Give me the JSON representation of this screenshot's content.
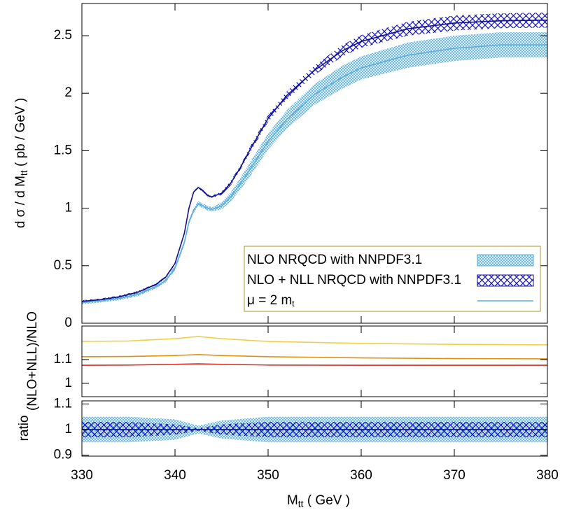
{
  "chart_data": [
    {
      "type": "line",
      "ylabel": {
        "text": "d σ / d M",
        "sub": "tt",
        "after": "  ( pb / GeV )"
      },
      "x": [
        330,
        332,
        334,
        336,
        338,
        339,
        340,
        341,
        341.5,
        342,
        342.5,
        343,
        343.5,
        344,
        345,
        346,
        347,
        348,
        350,
        352,
        355,
        358,
        360,
        365,
        370,
        375,
        380
      ],
      "xlim": [
        330,
        380
      ],
      "xticks": [
        330,
        340,
        350,
        360,
        370,
        380
      ],
      "ylim": [
        0,
        2.78
      ],
      "yticks": [
        0,
        0.5,
        1,
        1.5,
        2,
        2.5
      ],
      "legend": "lower right",
      "line_legend": {
        "text": "μ = 2 m",
        "sub": "t"
      },
      "series": [
        {
          "name": "NLO NRQCD with NNPDF3.1",
          "color": "#5aaee0",
          "band_style": "light-hatch",
          "values": [
            0.18,
            0.195,
            0.215,
            0.25,
            0.32,
            0.37,
            0.48,
            0.7,
            0.88,
            0.98,
            1.04,
            1.02,
            1.0,
            0.99,
            1.02,
            1.1,
            1.21,
            1.33,
            1.58,
            1.77,
            1.99,
            2.14,
            2.22,
            2.33,
            2.39,
            2.42,
            2.42
          ],
          "low": [
            0.165,
            0.18,
            0.2,
            0.235,
            0.305,
            0.355,
            0.46,
            0.68,
            0.86,
            0.96,
            1.02,
            1.0,
            0.98,
            0.97,
            0.99,
            1.06,
            1.16,
            1.27,
            1.51,
            1.69,
            1.9,
            2.04,
            2.12,
            2.22,
            2.28,
            2.31,
            2.31
          ],
          "high": [
            0.195,
            0.21,
            0.23,
            0.265,
            0.335,
            0.385,
            0.5,
            0.72,
            0.9,
            1.0,
            1.06,
            1.04,
            1.02,
            1.01,
            1.05,
            1.14,
            1.26,
            1.39,
            1.65,
            1.85,
            2.08,
            2.24,
            2.32,
            2.44,
            2.5,
            2.53,
            2.53
          ]
        },
        {
          "name": "NLO + NLL NRQCD with NNPDF3.1",
          "color": "#12128c",
          "band_style": "cross-hatch",
          "values": [
            0.19,
            0.205,
            0.23,
            0.27,
            0.34,
            0.4,
            0.52,
            0.78,
            1.0,
            1.14,
            1.18,
            1.15,
            1.11,
            1.1,
            1.13,
            1.22,
            1.35,
            1.5,
            1.78,
            1.98,
            2.2,
            2.37,
            2.45,
            2.56,
            2.61,
            2.63,
            2.635
          ],
          "low": [
            0.18,
            0.195,
            0.22,
            0.26,
            0.33,
            0.39,
            0.51,
            0.77,
            0.99,
            1.13,
            1.17,
            1.14,
            1.1,
            1.09,
            1.115,
            1.2,
            1.33,
            1.475,
            1.75,
            1.945,
            2.16,
            2.32,
            2.395,
            2.5,
            2.545,
            2.565,
            2.57
          ],
          "high": [
            0.2,
            0.215,
            0.24,
            0.28,
            0.35,
            0.41,
            0.53,
            0.79,
            1.01,
            1.15,
            1.19,
            1.16,
            1.12,
            1.11,
            1.145,
            1.24,
            1.37,
            1.525,
            1.81,
            2.015,
            2.24,
            2.42,
            2.505,
            2.62,
            2.675,
            2.695,
            2.7
          ]
        }
      ]
    },
    {
      "type": "line",
      "ylabel": "(NLO+NLL)/NLO",
      "x": [
        330,
        335,
        340,
        342.5,
        345,
        350,
        360,
        370,
        380
      ],
      "xlim": [
        330,
        380
      ],
      "xticks": [
        330,
        340,
        350,
        360,
        370,
        380
      ],
      "ylim": [
        0.944,
        1.241
      ],
      "yticks": [
        1,
        1.1
      ],
      "series": [
        {
          "color": "#eed04a",
          "values": [
            1.176,
            1.178,
            1.188,
            1.197,
            1.188,
            1.176,
            1.168,
            1.164,
            1.162
          ]
        },
        {
          "color": "#e0900a",
          "values": [
            1.112,
            1.113,
            1.117,
            1.121,
            1.117,
            1.112,
            1.107,
            1.104,
            1.103
          ]
        },
        {
          "color": "#d42a20",
          "values": [
            1.076,
            1.077,
            1.08,
            1.082,
            1.08,
            1.077,
            1.076,
            1.076,
            1.076
          ]
        }
      ]
    },
    {
      "type": "line",
      "ylabel": "ratio",
      "xlabel": {
        "text": "M",
        "sub": "tt",
        "after": "  ( GeV )"
      },
      "x": [
        330,
        335,
        340,
        342.5,
        345,
        350,
        360,
        370,
        380
      ],
      "xlim": [
        330,
        380
      ],
      "xticks": [
        330,
        340,
        350,
        360,
        370,
        380
      ],
      "ylim": [
        0.896,
        1.112
      ],
      "yticks": [
        0.9,
        1,
        1.1
      ],
      "series": [
        {
          "color": "#5aaee0",
          "band_style": "light-hatch",
          "values": [
            1,
            1,
            1,
            1,
            1,
            1,
            1,
            1,
            1
          ],
          "low": [
            0.95,
            0.95,
            0.96,
            0.985,
            0.965,
            0.95,
            0.95,
            0.95,
            0.95
          ],
          "high": [
            1.05,
            1.05,
            1.04,
            1.015,
            1.035,
            1.05,
            1.05,
            1.05,
            1.05
          ]
        },
        {
          "color": "#12128c",
          "band_style": "cross-hatch",
          "values": [
            1,
            1,
            1,
            1,
            1,
            1,
            1,
            1,
            1
          ],
          "low": [
            0.97,
            0.97,
            0.98,
            0.995,
            0.98,
            0.97,
            0.97,
            0.97,
            0.97
          ],
          "high": [
            1.03,
            1.03,
            1.02,
            1.005,
            1.02,
            1.03,
            1.03,
            1.03,
            1.03
          ]
        }
      ]
    }
  ]
}
